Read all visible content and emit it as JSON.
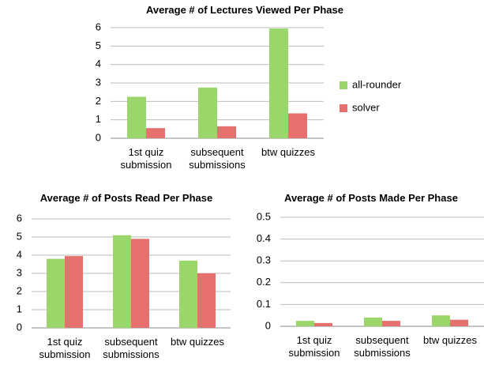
{
  "chart_data": [
    {
      "type": "bar",
      "title": "Average # of Lectures Viewed Per Phase",
      "categories": [
        "1st quiz submission",
        "subsequent submissions",
        "btw quizzes"
      ],
      "series": [
        {
          "name": "all-rounder",
          "color": "#9ad66a",
          "values": [
            2.25,
            2.75,
            5.95
          ]
        },
        {
          "name": "solver",
          "color": "#e5706e",
          "values": [
            0.55,
            0.65,
            1.35
          ]
        }
      ],
      "ylim": [
        0,
        6
      ],
      "yticks": [
        0,
        1,
        2,
        3,
        4,
        5,
        6
      ],
      "grid": true,
      "legend": "right"
    },
    {
      "type": "bar",
      "title": "Average # of Posts Read Per Phase",
      "categories": [
        "1st quiz submission",
        "subsequent submissions",
        "btw quizzes"
      ],
      "series": [
        {
          "color": "#9ad66a",
          "values": [
            3.8,
            5.1,
            3.7
          ]
        },
        {
          "color": "#e5706e",
          "values": [
            3.95,
            4.9,
            3.0
          ]
        }
      ],
      "ylim": [
        0,
        6
      ],
      "yticks": [
        0,
        1,
        2,
        3,
        4,
        5,
        6
      ],
      "grid": true
    },
    {
      "type": "bar",
      "title": "Average # of Posts Made Per Phase",
      "categories": [
        "1st quiz submission",
        "subsequent submissions",
        "btw quizzes"
      ],
      "series": [
        {
          "color": "#9ad66a",
          "values": [
            0.025,
            0.04,
            0.05
          ]
        },
        {
          "color": "#e5706e",
          "values": [
            0.015,
            0.025,
            0.03
          ]
        }
      ],
      "ylim": [
        0,
        0.5
      ],
      "yticks": [
        0,
        0.1,
        0.2,
        0.3,
        0.4,
        0.5
      ],
      "grid": true
    }
  ]
}
